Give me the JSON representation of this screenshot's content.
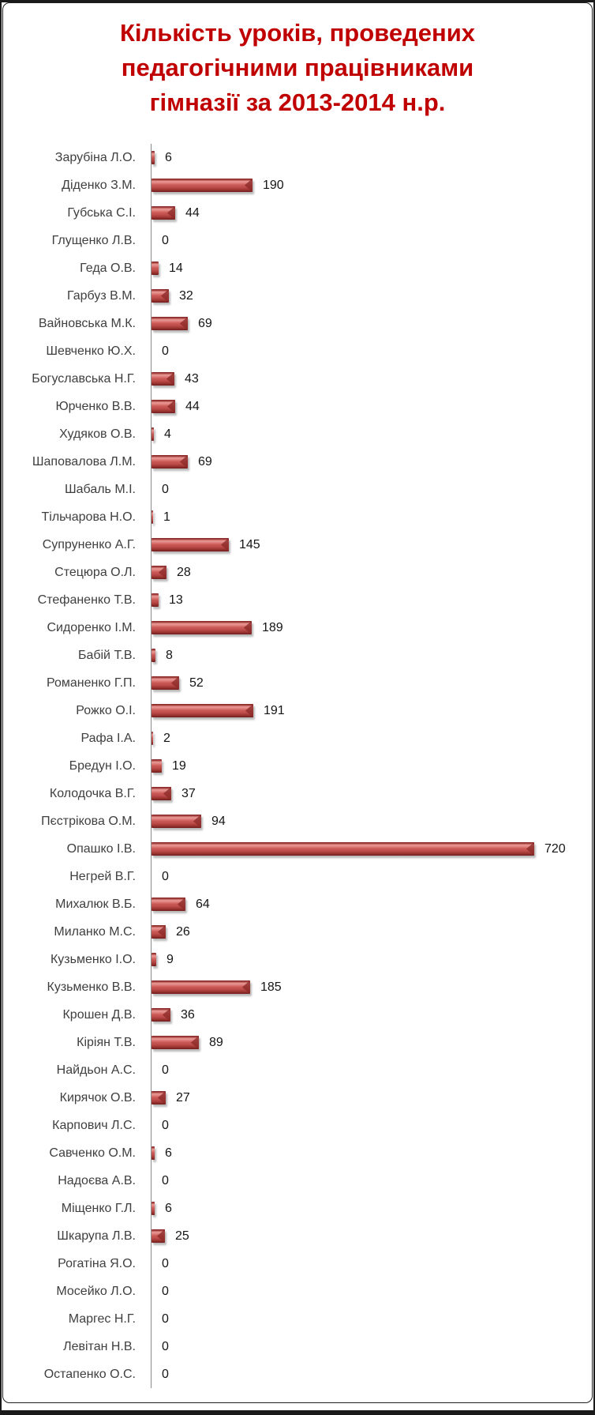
{
  "page": {
    "background": "#FFFFFF",
    "frame_color": "#1A1A1A"
  },
  "chart_data": {
    "type": "bar",
    "orientation": "horizontal",
    "title": "Кількість уроків, проведених педагогічними працівниками гімназії за 2013-2014 н.р.",
    "title_lines": [
      "Кількість уроків, проведених",
      "педагогічними працівниками",
      "гімназії за 2013-2014 н.р."
    ],
    "title_color": "#C00000",
    "categories": [
      "Зарубіна Л.О.",
      "Діденко З.М.",
      "Губська С.І.",
      "Глущенко Л.В.",
      "Геда О.В.",
      "Гарбуз В.М.",
      "Вайновська М.К.",
      "Шевченко Ю.Х.",
      "Богуславська Н.Г.",
      "Юрченко В.В.",
      "Худяков О.В.",
      "Шаповалова Л.М.",
      "Шабаль М.І.",
      "Тільчарова Н.О.",
      "Супруненко А.Г.",
      "Стецюра О.Л.",
      "Стефаненко Т.В.",
      "Сидоренко І.М.",
      "Бабій Т.В.",
      "Романенко Г.П.",
      "Рожко О.І.",
      "Рафа І.А.",
      "Бредун І.О.",
      "Колодочка В.Г.",
      "Пєстрікова О.М.",
      "Опашко І.В.",
      "Негрей В.Г.",
      "Михалюк В.Б.",
      "Миланко М.С.",
      "Кузьменко І.О.",
      "Кузьменко В.В.",
      "Крошен Д.В.",
      "Кіріян Т.В.",
      "Найдьон А.С.",
      "Кирячок О.В.",
      "Карпович Л.С.",
      "Савченко О.М.",
      "Надоєва А.В.",
      "Міщенко Г.Л.",
      "Шкарупа Л.В.",
      "Рогатіна Я.О.",
      "Мосейко Л.О.",
      "Маргес Н.Г.",
      "Левітан Н.В.",
      "Остапенко О.С."
    ],
    "values": [
      6,
      190,
      44,
      0,
      14,
      32,
      69,
      0,
      43,
      44,
      4,
      69,
      0,
      1,
      145,
      28,
      13,
      189,
      8,
      52,
      191,
      2,
      19,
      37,
      94,
      720,
      0,
      64,
      26,
      9,
      185,
      36,
      89,
      0,
      27,
      0,
      6,
      0,
      6,
      25,
      0,
      0,
      0,
      0,
      0
    ],
    "value_labels": true,
    "xlim": [
      0,
      720
    ],
    "grid": false,
    "legend": false,
    "bar_color": "#C0504D",
    "bar_highlight": "#EA9B98",
    "bar_dark_edge": "#6F1E1D",
    "axis_color": "#8A8A8A",
    "label_color": "#3F3F3F",
    "value_color": "#151515"
  }
}
